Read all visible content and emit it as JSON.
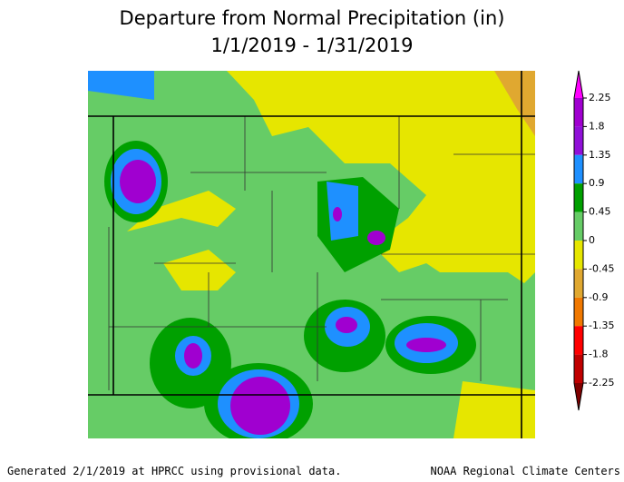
{
  "title": [
    "Departure from Normal Precipitation (in)",
    "1/1/2019 - 1/31/2019"
  ],
  "legend": {
    "ticks": [
      2.25,
      1.8,
      1.35,
      0.9,
      0.45,
      0,
      -0.45,
      -0.9,
      -1.35,
      -1.8,
      -2.25
    ],
    "colors": [
      "#ff00ff",
      "#a000d0",
      "#9010d8",
      "#1e90ff",
      "#00a000",
      "#66cc66",
      "#e6e600",
      "#e0a830",
      "#f07800",
      "#ff0000",
      "#c00000",
      "#800000"
    ]
  },
  "footer": {
    "left": "Generated 2/1/2019 at HPRCC using provisional data.",
    "right": "NOAA Regional Climate Centers"
  }
}
